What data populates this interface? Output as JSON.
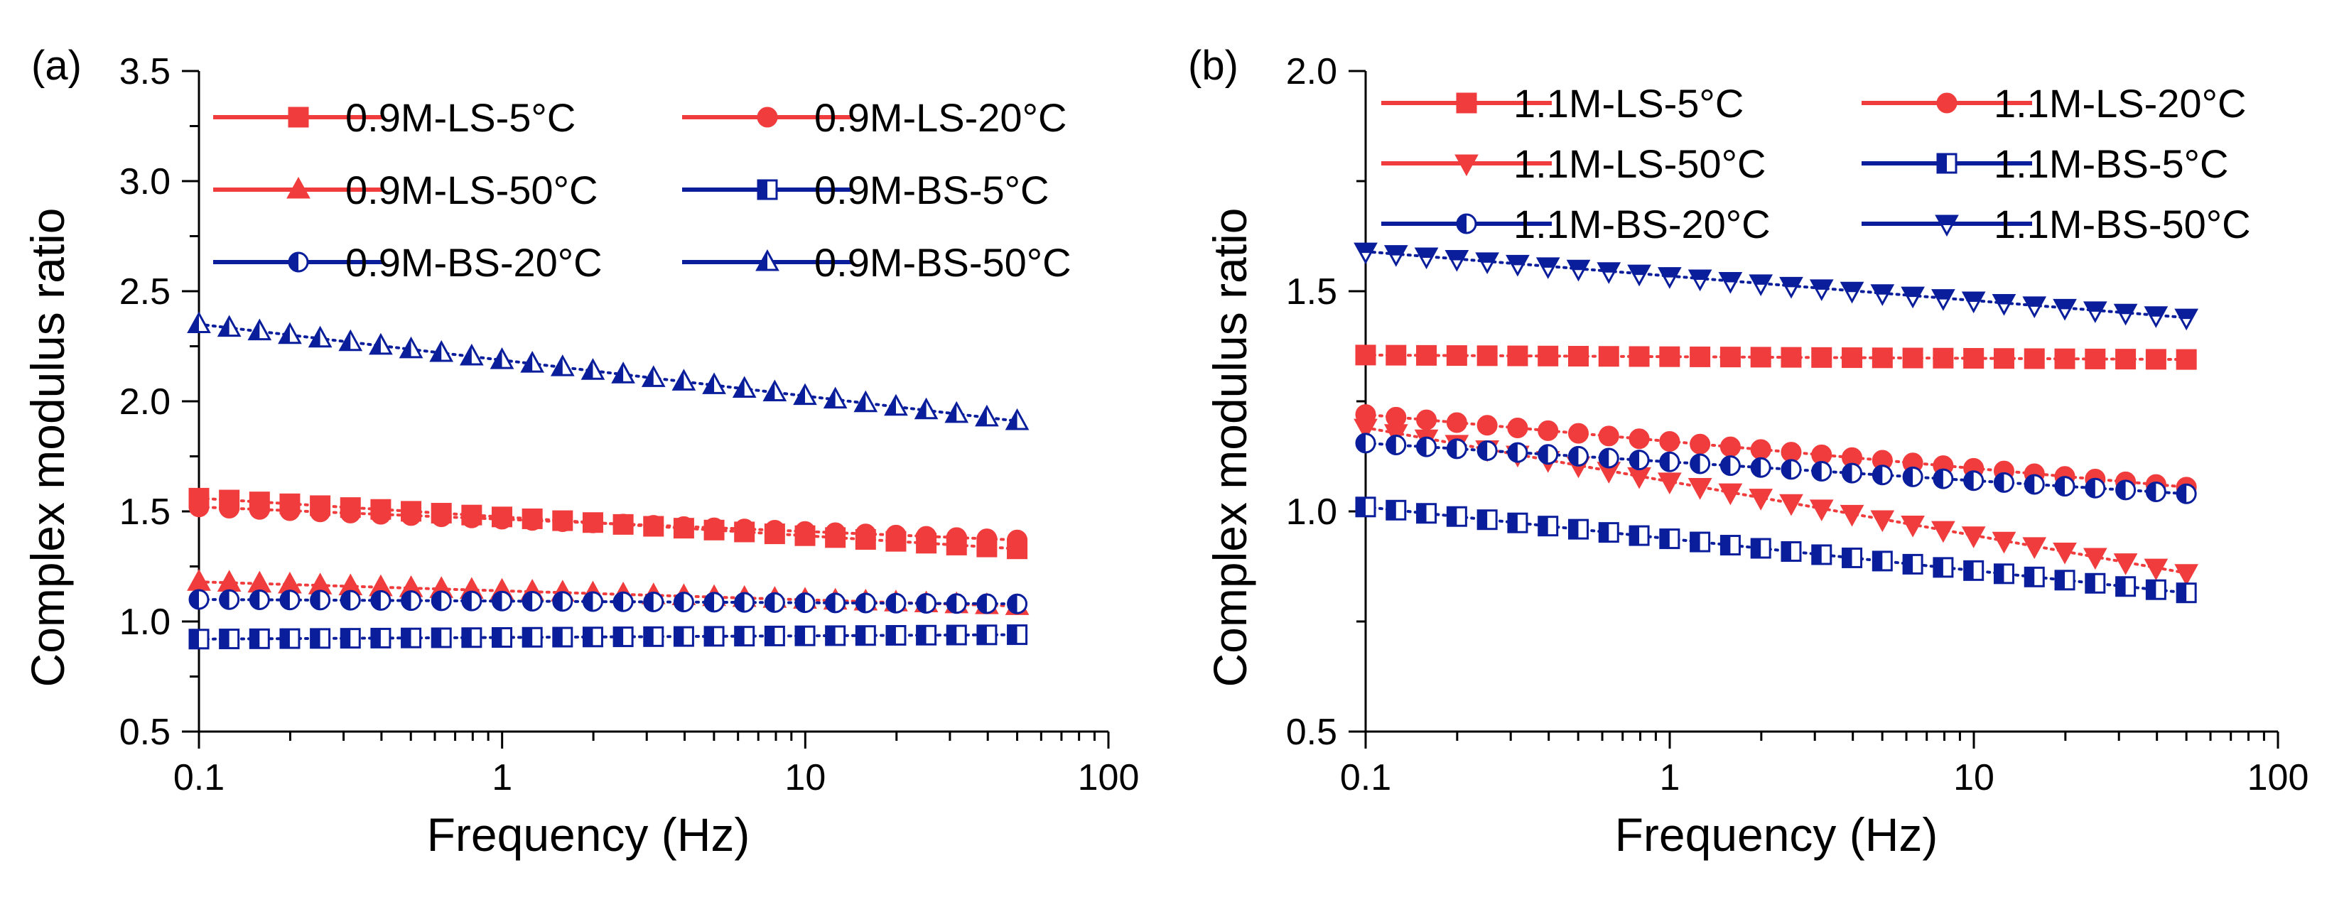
{
  "colors": {
    "ls": "#f03c3c",
    "bs": "#0a1e9c"
  },
  "chart_data": [
    {
      "type": "scatter",
      "panel": "(a)",
      "xlabel": "Frequency (Hz)",
      "ylabel": "Complex modulus ratio",
      "xscale": "log",
      "xlim": [
        0.1,
        100
      ],
      "ylim": [
        0.5,
        3.5
      ],
      "xticks": [
        "0.1",
        "1",
        "10",
        "100"
      ],
      "yticks": [
        "0.5",
        "1.0",
        "1.5",
        "2.0",
        "2.5",
        "3.0",
        "3.5"
      ],
      "grid": false,
      "legend_position": "top",
      "freq_range": [
        0.1,
        50
      ],
      "n_points": 28,
      "series": [
        {
          "name": "0.9M-LS-5°C",
          "group": "ls",
          "marker": "square",
          "y_start": 1.56,
          "y_end": 1.33
        },
        {
          "name": "0.9M-LS-20°C",
          "group": "ls",
          "marker": "circle",
          "y_start": 1.52,
          "y_end": 1.37
        },
        {
          "name": "0.9M-LS-50°C",
          "group": "ls",
          "marker": "triangle-up",
          "y_start": 1.18,
          "y_end": 1.07
        },
        {
          "name": "0.9M-BS-5°C",
          "group": "bs",
          "marker": "square-half",
          "y_start": 0.92,
          "y_end": 0.94
        },
        {
          "name": "0.9M-BS-20°C",
          "group": "bs",
          "marker": "circle-half",
          "y_start": 1.1,
          "y_end": 1.08
        },
        {
          "name": "0.9M-BS-50°C",
          "group": "bs",
          "marker": "triangle-half",
          "y_start": 2.35,
          "y_end": 1.91
        }
      ]
    },
    {
      "type": "scatter",
      "panel": "(b)",
      "xlabel": "Frequency (Hz)",
      "ylabel": "Complex modulus ratio",
      "xscale": "log",
      "xlim": [
        0.1,
        100
      ],
      "ylim": [
        0.5,
        2.0
      ],
      "xticks": [
        "0.1",
        "1",
        "10",
        "100"
      ],
      "yticks": [
        "0.5",
        "1.0",
        "1.5",
        "2.0"
      ],
      "grid": false,
      "legend_position": "top",
      "freq_range": [
        0.1,
        50
      ],
      "n_points": 28,
      "series": [
        {
          "name": "1.1M-LS-5°C",
          "group": "ls",
          "marker": "square",
          "y_start": 1.355,
          "y_end": 1.345
        },
        {
          "name": "1.1M-LS-20°C",
          "group": "ls",
          "marker": "circle",
          "y_start": 1.22,
          "y_end": 1.055
        },
        {
          "name": "1.1M-LS-50°C",
          "group": "ls",
          "marker": "triangle-down",
          "y_start": 1.19,
          "y_end": 0.86
        },
        {
          "name": "1.1M-BS-5°C",
          "group": "bs",
          "marker": "square-half",
          "y_start": 1.01,
          "y_end": 0.815
        },
        {
          "name": "1.1M-BS-20°C",
          "group": "bs",
          "marker": "circle-half",
          "y_start": 1.155,
          "y_end": 1.04
        },
        {
          "name": "1.1M-BS-50°C",
          "group": "bs",
          "marker": "triangle-down-half",
          "y_start": 1.59,
          "y_end": 1.44
        }
      ]
    }
  ]
}
